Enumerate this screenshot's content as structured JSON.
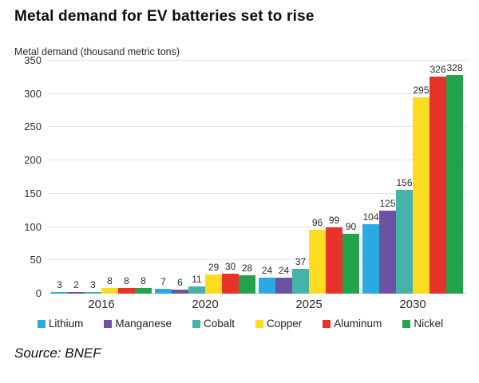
{
  "title": "Metal demand for EV batteries set to rise",
  "y_axis_title": "Metal demand (thousand metric tons)",
  "source": "Source: BNEF",
  "chart_data": {
    "type": "bar",
    "title": "Metal demand for EV batteries set to rise",
    "ylabel": "Metal demand (thousand metric tons)",
    "categories": [
      "2016",
      "2020",
      "2025",
      "2030"
    ],
    "series": [
      {
        "name": "Lithium",
        "color": "#29abe2",
        "values": [
          3,
          7,
          24,
          104
        ]
      },
      {
        "name": "Manganese",
        "color": "#6c52a2",
        "values": [
          2,
          6,
          24,
          125
        ]
      },
      {
        "name": "Cobalt",
        "color": "#45b3a8",
        "values": [
          3,
          11,
          37,
          156
        ]
      },
      {
        "name": "Copper",
        "color": "#fbdc20",
        "values": [
          8,
          29,
          96,
          295
        ]
      },
      {
        "name": "Aluminum",
        "color": "#e63229",
        "values": [
          8,
          30,
          99,
          326
        ]
      },
      {
        "name": "Nickel",
        "color": "#22a24b",
        "values": [
          8,
          28,
          90,
          328
        ]
      }
    ],
    "ylim": [
      0,
      350
    ],
    "yticks": [
      0,
      50,
      100,
      150,
      200,
      250,
      300,
      350
    ],
    "grid": true,
    "legend_position": "bottom",
    "value_labels": true
  }
}
